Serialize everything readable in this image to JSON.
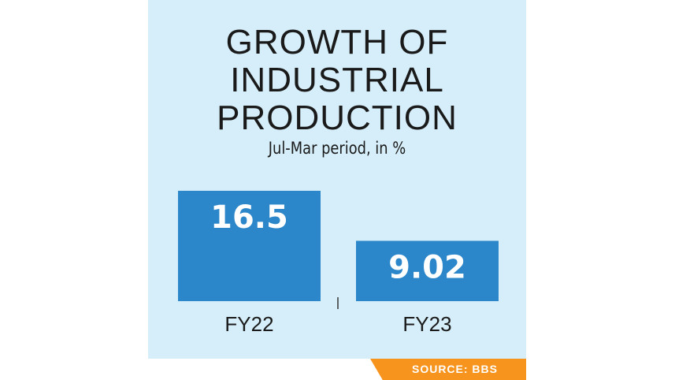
{
  "chart_data": {
    "type": "bar",
    "title": "GROWTH OF INDUSTRIAL PRODUCTION",
    "subtitle": "Jul-Mar period, in %",
    "categories": [
      "FY22",
      "FY23"
    ],
    "values": [
      16.5,
      9.02
    ],
    "color": "#2b87c9",
    "source": "SOURCE: BBS"
  }
}
